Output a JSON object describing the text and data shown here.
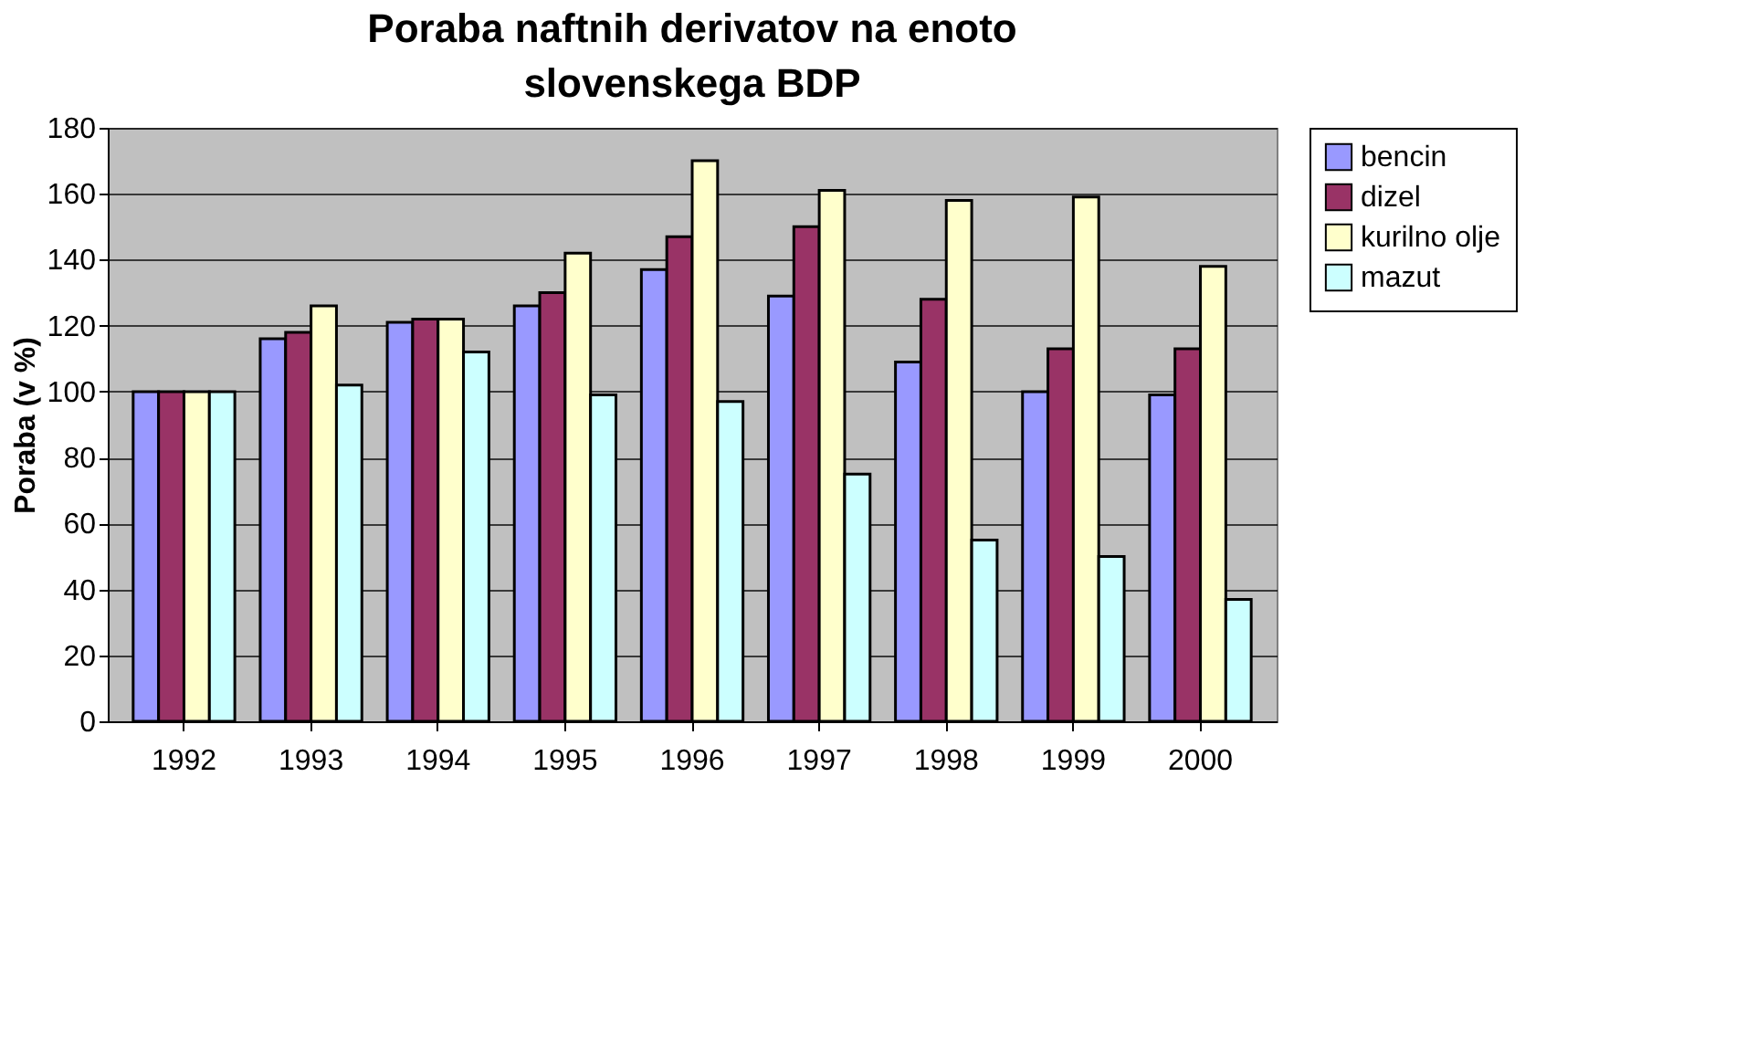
{
  "chart_data": {
    "type": "bar",
    "title": "Poraba naftnih derivatov na enoto slovenskega BDP",
    "ylabel": "Poraba (v %)",
    "categories": [
      "1992",
      "1993",
      "1994",
      "1995",
      "1996",
      "1997",
      "1998",
      "1999",
      "2000"
    ],
    "series": [
      {
        "name": "bencin",
        "color": "#9999ff",
        "values": [
          100,
          116,
          121,
          126,
          137,
          129,
          109,
          100,
          99
        ]
      },
      {
        "name": "dizel",
        "color": "#993366",
        "values": [
          100,
          118,
          122,
          130,
          147,
          150,
          128,
          113,
          113
        ]
      },
      {
        "name": "kurilno olje",
        "color": "#ffffcc",
        "values": [
          100,
          126,
          122,
          142,
          170,
          161,
          158,
          159,
          138
        ]
      },
      {
        "name": "mazut",
        "color": "#ccffff",
        "values": [
          100,
          102,
          112,
          99,
          97,
          75,
          55,
          50,
          37
        ]
      }
    ],
    "ylim": [
      0,
      180
    ],
    "yticks": [
      0,
      20,
      40,
      60,
      80,
      100,
      120,
      140,
      160,
      180
    ],
    "grid": "y",
    "legend": "right"
  }
}
